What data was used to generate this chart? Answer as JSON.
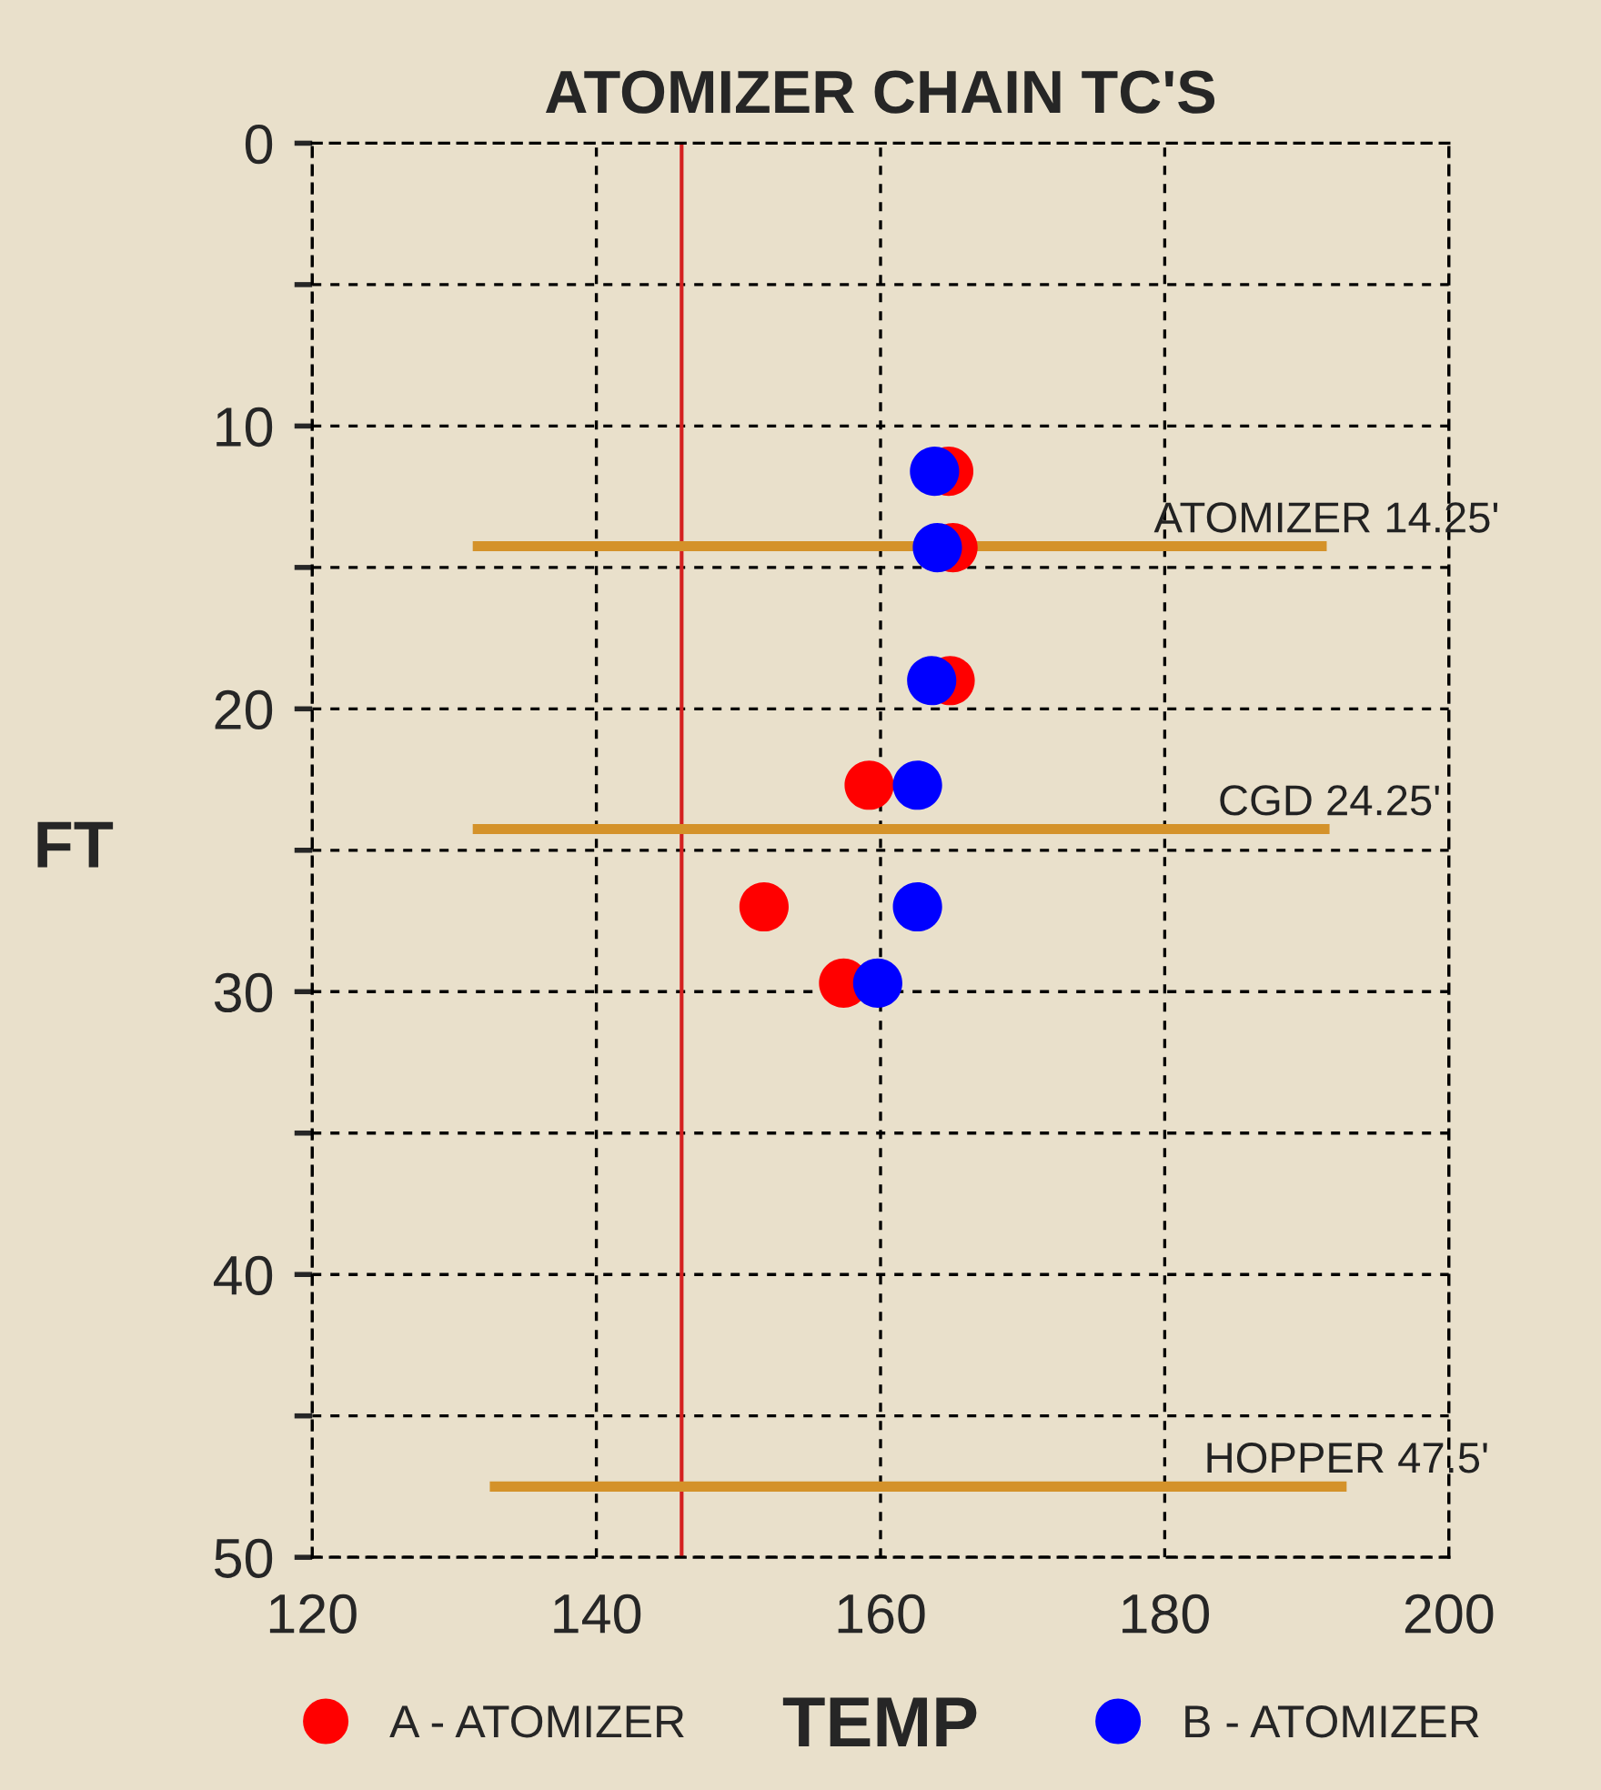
{
  "chart_data": {
    "type": "scatter",
    "title": "ATOMIZER CHAIN TC'S",
    "xlabel": "TEMP",
    "ylabel": "FT",
    "xlim": [
      120,
      200
    ],
    "xticks": [
      120,
      140,
      160,
      180,
      200
    ],
    "ylim": [
      50,
      0
    ],
    "yticks": [
      0,
      {
        "value": 5,
        "label": null
      },
      10,
      {
        "value": 15,
        "label": null
      },
      20,
      {
        "value": 25,
        "label": null
      },
      30,
      {
        "value": 35,
        "label": null
      },
      40,
      {
        "value": 45,
        "label": null
      },
      50
    ],
    "grid": true,
    "legend": "bottom",
    "marker": "circle",
    "series": [
      {
        "type": "line",
        "marker": "none",
        "color": "#d4922a",
        "x": [
          131.3,
          191.4
        ],
        "values": [
          14.25,
          14.25
        ]
      },
      {
        "type": "line",
        "marker": "none",
        "color": "#d4922a",
        "x": [
          131.3,
          191.6
        ],
        "values": [
          24.25,
          24.25
        ]
      },
      {
        "type": "line",
        "marker": "none",
        "color": "#d4922a",
        "x": [
          132.5,
          192.8
        ],
        "values": [
          47.5,
          47.5
        ]
      },
      {
        "name": "A - ATOMIZER",
        "color": "#ff0000",
        "x": [
          164.8,
          165.1,
          164.9,
          159.2,
          151.8,
          157.4
        ],
        "values": [
          11.6,
          14.3,
          19.0,
          22.7,
          27.0,
          29.7
        ]
      },
      {
        "name": "B - ATOMIZER",
        "color": "#0000ff",
        "x": [
          163.8,
          164.0,
          163.6,
          162.6,
          162.6,
          159.8
        ],
        "values": [
          11.6,
          14.3,
          19.0,
          22.7,
          27.0,
          29.7
        ]
      }
    ],
    "ref_lines": [
      {
        "axis": "x",
        "value": 146,
        "color": "#d42020"
      }
    ],
    "annotations": [
      {
        "text": "ATOMIZER 14.25'",
        "x": 191.4,
        "y": 14.25
      },
      {
        "text": "CGD 24.25'",
        "x": 191.6,
        "y": 24.25
      },
      {
        "text": "HOPPER 47.5'",
        "x": 192.8,
        "y": 47.5
      }
    ]
  }
}
